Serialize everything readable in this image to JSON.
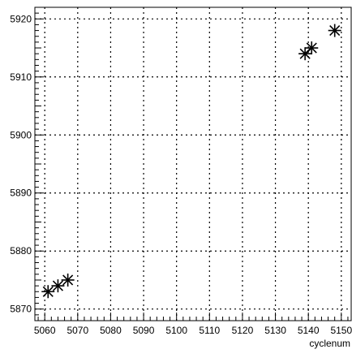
{
  "chart_data": {
    "type": "scatter",
    "title": "",
    "xlabel": "cyclenum",
    "ylabel": "",
    "xlim": [
      5057,
      5153
    ],
    "ylim": [
      5868,
      5922
    ],
    "grid": true,
    "marker": "asterisk",
    "x_ticks": [
      5060,
      5070,
      5080,
      5090,
      5100,
      5110,
      5120,
      5130,
      5140,
      5150
    ],
    "x_tick_labels": [
      "5060",
      "5070",
      "5080",
      "5090",
      "5100",
      "5110",
      "5120",
      "5130",
      "5140",
      "5150"
    ],
    "y_ticks": [
      5870,
      5880,
      5890,
      5900,
      5910,
      5920
    ],
    "y_tick_labels": [
      "5870",
      "5880",
      "5890",
      "5900",
      "5910",
      "5920"
    ],
    "series": [
      {
        "x": [
          5061,
          5064,
          5067,
          5139,
          5141,
          5148
        ],
        "y": [
          5873,
          5874,
          5875,
          5914,
          5915,
          5918
        ]
      }
    ]
  }
}
